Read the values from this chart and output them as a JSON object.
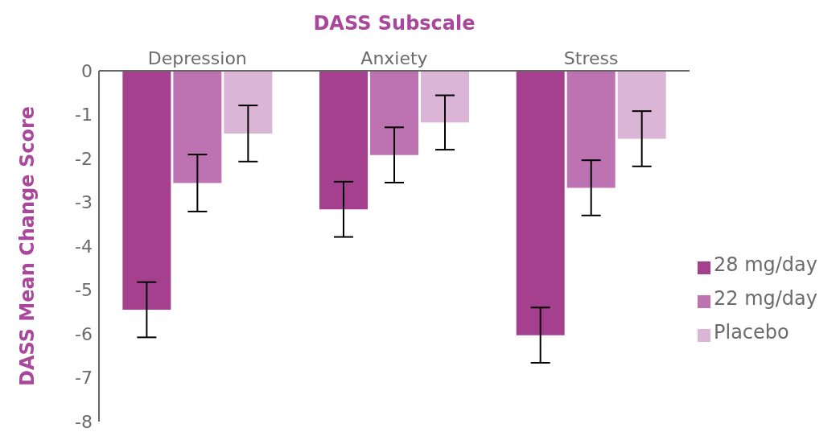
{
  "chart_data": {
    "type": "bar",
    "xlabel": "DASS Subscale",
    "ylabel": "DASS Mean Change Score",
    "categories": [
      "Depression",
      "Anxiety",
      "Stress"
    ],
    "series": [
      {
        "name": "28 mg/day",
        "color": "#a5408f",
        "values": [
          -5.45,
          -3.16,
          -6.03
        ],
        "errors": [
          0.63,
          0.63,
          0.63
        ]
      },
      {
        "name": "22 mg/day",
        "color": "#bd73b1",
        "values": [
          -2.56,
          -1.92,
          -2.67
        ],
        "errors": [
          0.65,
          0.63,
          0.63
        ]
      },
      {
        "name": "Placebo",
        "color": "#dbb5d6",
        "values": [
          -1.43,
          -1.18,
          -1.55
        ],
        "errors": [
          0.64,
          0.62,
          0.63
        ]
      }
    ],
    "ylim": [
      -8,
      0
    ],
    "yticks": [
      0,
      -1,
      -2,
      -3,
      -4,
      -5,
      -6,
      -7,
      -8
    ],
    "grid": false,
    "legend": "right"
  }
}
